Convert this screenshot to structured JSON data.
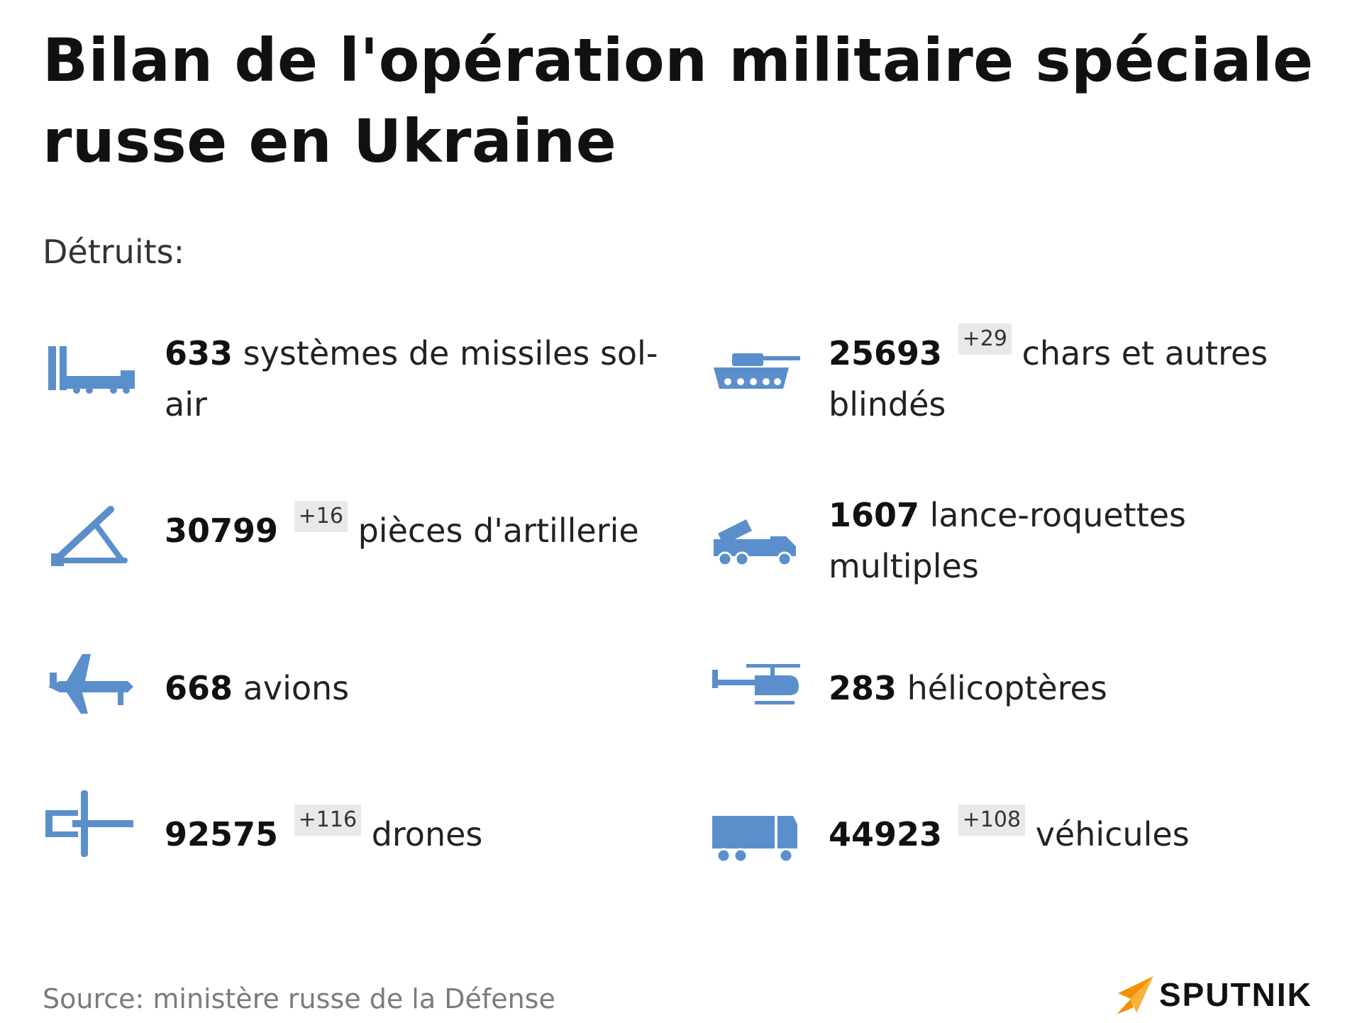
{
  "title": "Bilan de l'opération militaire spéciale russe en Ukraine",
  "subtitle": "Détruits:",
  "items": [
    {
      "count": "633",
      "delta": "",
      "label": "systèmes de missiles sol-air",
      "icon": "sam-launcher-icon"
    },
    {
      "count": "25693",
      "delta": "+29",
      "label": "chars et autres blindés",
      "icon": "tank-icon"
    },
    {
      "count": "30799",
      "delta": "+16",
      "label": "pièces d'artillerie",
      "icon": "artillery-icon"
    },
    {
      "count": "1607",
      "delta": "",
      "label": "lance-roquettes multiples",
      "icon": "rocket-launcher-truck-icon"
    },
    {
      "count": "668",
      "delta": "",
      "label": "avions",
      "icon": "airplane-icon"
    },
    {
      "count": "283",
      "delta": "",
      "label": "hélicoptères",
      "icon": "helicopter-icon"
    },
    {
      "count": "92575",
      "delta": "+116",
      "label": "drones",
      "icon": "drone-icon"
    },
    {
      "count": "44923",
      "delta": "+108",
      "label": "véhicules",
      "icon": "truck-icon"
    }
  ],
  "source": "Source: ministère russe de la Défense",
  "brand": {
    "name": "SPUTNIK",
    "icon": "sputnik-logo-icon"
  },
  "colors": {
    "icon": "#5b8fcb",
    "brand_orange": "#f39200",
    "delta_bg": "#e9e9e9",
    "source_text": "#7b7b7b"
  }
}
